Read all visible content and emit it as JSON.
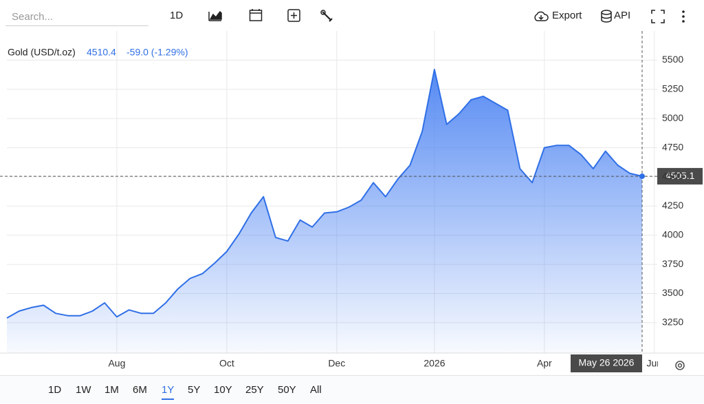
{
  "toolbar": {
    "search_placeholder": "Search...",
    "interval": "1D",
    "export": "Export",
    "api": "API"
  },
  "legend": {
    "name": "Gold (USD/t.oz)",
    "price": 4510.4,
    "change": "-59.0 (-1.29%)"
  },
  "chart_data": {
    "type": "area",
    "categories": [
      null,
      null,
      null,
      null,
      null,
      null,
      null,
      null,
      null,
      "Aug",
      null,
      null,
      null,
      null,
      null,
      null,
      null,
      null,
      "Oct",
      null,
      null,
      null,
      null,
      null,
      null,
      null,
      null,
      "Dec",
      null,
      null,
      null,
      null,
      null,
      null,
      null,
      "2026",
      null,
      null,
      null,
      null,
      null,
      null,
      null,
      null,
      "Apr",
      null,
      null,
      null,
      null,
      null,
      null,
      null,
      null,
      "Jun"
    ],
    "series": [
      {
        "name": "Gold (USD/t.oz)",
        "color": "#2f6fe6",
        "values": [
          3290,
          3350,
          3380,
          3400,
          3330,
          3310,
          3310,
          3350,
          3420,
          3300,
          3360,
          3330,
          3330,
          3420,
          3540,
          3630,
          3670,
          3760,
          3860,
          4010,
          4190,
          4330,
          3980,
          3950,
          4130,
          4070,
          4190,
          4200,
          4240,
          4300,
          4450,
          4330,
          4480,
          4600,
          4890,
          5420,
          4950,
          5040,
          5160,
          5190,
          5130,
          5070,
          4570,
          4450,
          4750,
          4770,
          4770,
          4690,
          4570,
          4720,
          4600,
          4530,
          4505.1,
          null
        ]
      }
    ],
    "ylim": [
      2990,
      5750
    ],
    "yticks": [
      3250,
      3500,
      3750,
      4000,
      4250,
      4500,
      4750,
      5000,
      5250,
      5500
    ],
    "grid": true,
    "crosshair_date": "May 26 2026"
  },
  "ranges": [
    "1D",
    "1W",
    "1M",
    "6M",
    "1Y",
    "5Y",
    "10Y",
    "25Y",
    "50Y",
    "All"
  ],
  "active_range": 4
}
